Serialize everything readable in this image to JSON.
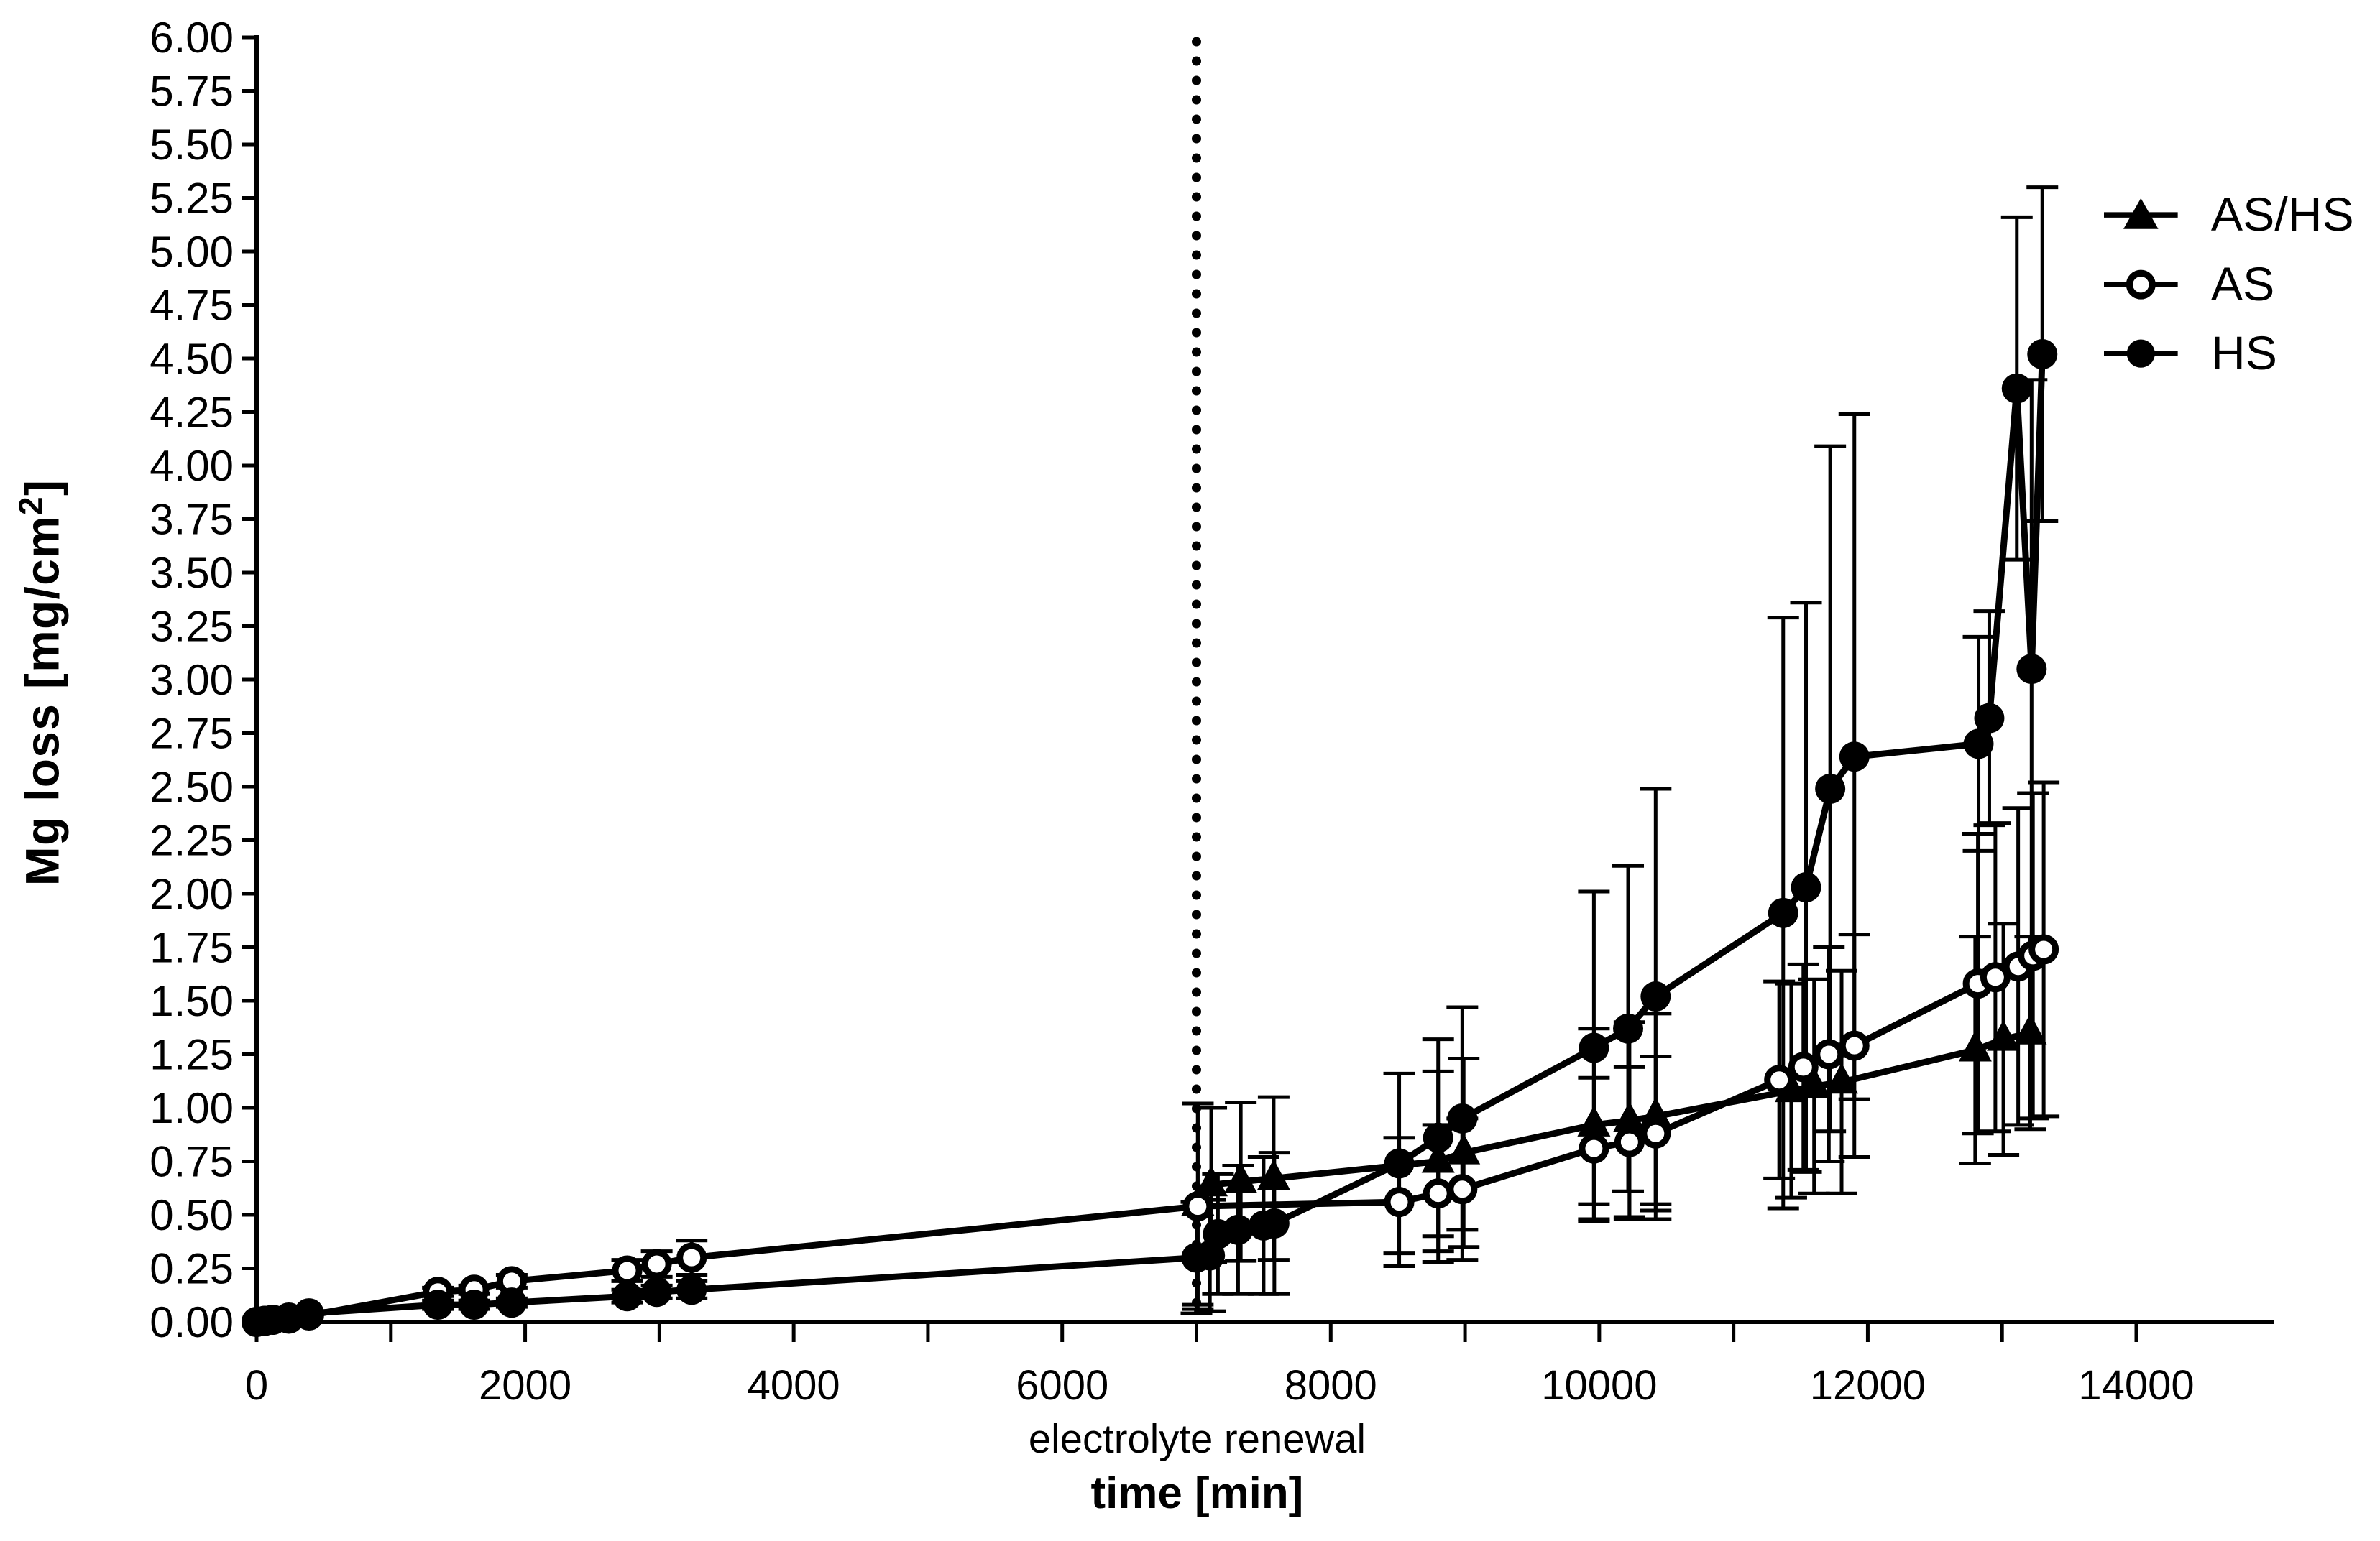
{
  "page": {
    "background": "#ffffff",
    "ink": "#000000"
  },
  "labels": {
    "y_title_main": "Mg loss [mg/cm",
    "y_title_sup": "2",
    "y_title_close": "]"
  },
  "y_axis": {
    "min": 0,
    "max": 6,
    "tick_step": 0.25,
    "tick_labels": [
      "0.00",
      "0.25",
      "0.50",
      "0.75",
      "1.00",
      "1.25",
      "1.50",
      "1.75",
      "2.00",
      "2.25",
      "2.50",
      "2.75",
      "3.00",
      "3.25",
      "3.50",
      "3.75",
      "4.00",
      "4.25",
      "4.50",
      "4.75",
      "5.00",
      "5.25",
      "5.50",
      "5.75",
      "6.00"
    ]
  },
  "x_axis": {
    "min": 0,
    "max": 15000,
    "minor_tick_step": 1000,
    "label_step": 2000,
    "tick_labels": [
      "0",
      "2000",
      "4000",
      "6000",
      "8000",
      "10000",
      "12000",
      "14000"
    ]
  },
  "chart_data": {
    "type": "line",
    "title": "",
    "xlabel": "time [min]",
    "ylabel": "Mg loss [mg/cm²]",
    "xlim": [
      0,
      15000
    ],
    "ylim": [
      0,
      6
    ],
    "grid": false,
    "legend_position": "upper right",
    "vline": {
      "x": 7000,
      "label": "electrolyte renewal",
      "style": "dotted"
    },
    "series": [
      {
        "name": "AS/HS",
        "marker": "filled-triangle",
        "color": "#000000",
        "points_format": [
          "time_min",
          "mg_loss",
          "error"
        ],
        "points": [
          [
            7010,
            0.55,
            0.47
          ],
          [
            7110,
            0.64,
            0.36
          ],
          [
            7330,
            0.655,
            0.37
          ],
          [
            7575,
            0.67,
            0.38
          ],
          [
            8800,
            0.75,
            0.42
          ],
          [
            8990,
            0.79,
            0.44
          ],
          [
            9960,
            0.92,
            0.45
          ],
          [
            10225,
            0.94,
            0.46
          ],
          [
            10420,
            0.96,
            0.48
          ],
          [
            11430,
            1.08,
            0.5
          ],
          [
            11600,
            1.1,
            0.5
          ],
          [
            11805,
            1.12,
            0.52
          ],
          [
            12800,
            1.27,
            0.53
          ],
          [
            13010,
            1.32,
            0.54
          ],
          [
            13210,
            1.35,
            0.45
          ]
        ]
      },
      {
        "name": "AS",
        "marker": "open-circle",
        "color": "#000000",
        "points_format": [
          "time_min",
          "mg_loss",
          "error"
        ],
        "points": [
          [
            0,
            0.0,
            0
          ],
          [
            60,
            0.005,
            0
          ],
          [
            120,
            0.01,
            0
          ],
          [
            240,
            0.02,
            0
          ],
          [
            390,
            0.03,
            0
          ],
          [
            1350,
            0.14,
            0.02
          ],
          [
            1620,
            0.15,
            0.02
          ],
          [
            1900,
            0.19,
            0.03
          ],
          [
            2760,
            0.24,
            0.05
          ],
          [
            2980,
            0.27,
            0.06
          ],
          [
            3240,
            0.3,
            0.08
          ],
          [
            7010,
            0.54,
            0.48
          ],
          [
            8510,
            0.56,
            0.3
          ],
          [
            8800,
            0.6,
            0.32
          ],
          [
            8980,
            0.62,
            0.33
          ],
          [
            9960,
            0.81,
            0.33
          ],
          [
            10225,
            0.84,
            0.35
          ],
          [
            10420,
            0.88,
            0.36
          ],
          [
            11340,
            1.13,
            0.46
          ],
          [
            11520,
            1.19,
            0.48
          ],
          [
            11710,
            1.25,
            0.5
          ],
          [
            11900,
            1.29,
            0.52
          ],
          [
            12820,
            1.58,
            0.7
          ],
          [
            12950,
            1.61,
            0.72
          ],
          [
            13120,
            1.66,
            0.74
          ],
          [
            13230,
            1.71,
            0.76
          ],
          [
            13310,
            1.74,
            0.78
          ]
        ]
      },
      {
        "name": "HS",
        "marker": "filled-circle",
        "color": "#000000",
        "points_format": [
          "time_min",
          "mg_loss",
          "error"
        ],
        "points": [
          [
            0,
            0.0,
            0
          ],
          [
            60,
            0.005,
            0
          ],
          [
            120,
            0.01,
            0
          ],
          [
            240,
            0.015,
            0
          ],
          [
            390,
            0.04,
            0
          ],
          [
            1350,
            0.08,
            0.02
          ],
          [
            1620,
            0.08,
            0.02
          ],
          [
            1900,
            0.09,
            0.02
          ],
          [
            2760,
            0.12,
            0.03
          ],
          [
            2980,
            0.14,
            0.03
          ],
          [
            3240,
            0.15,
            0.04
          ],
          [
            7000,
            0.3,
            0.26
          ],
          [
            7100,
            0.31,
            0.26
          ],
          [
            7160,
            0.41,
            0.28
          ],
          [
            7310,
            0.43,
            0.3
          ],
          [
            7500,
            0.45,
            0.32
          ],
          [
            7580,
            0.46,
            0.33
          ],
          [
            8510,
            0.74,
            0.42
          ],
          [
            8800,
            0.86,
            0.46
          ],
          [
            8980,
            0.95,
            0.52
          ],
          [
            9960,
            1.28,
            0.73
          ],
          [
            10215,
            1.37,
            0.76
          ],
          [
            10420,
            1.52,
            0.97
          ],
          [
            11370,
            1.91,
            1.38
          ],
          [
            11540,
            2.03,
            1.33
          ],
          [
            11720,
            2.49,
            1.6
          ],
          [
            11900,
            2.64,
            1.6
          ],
          [
            12825,
            2.7,
            0.5
          ],
          [
            12905,
            2.82,
            0.5
          ],
          [
            13110,
            4.36,
            0.8
          ],
          [
            13220,
            3.05,
            1.35
          ],
          [
            13300,
            4.52,
            0.78
          ]
        ]
      }
    ]
  }
}
